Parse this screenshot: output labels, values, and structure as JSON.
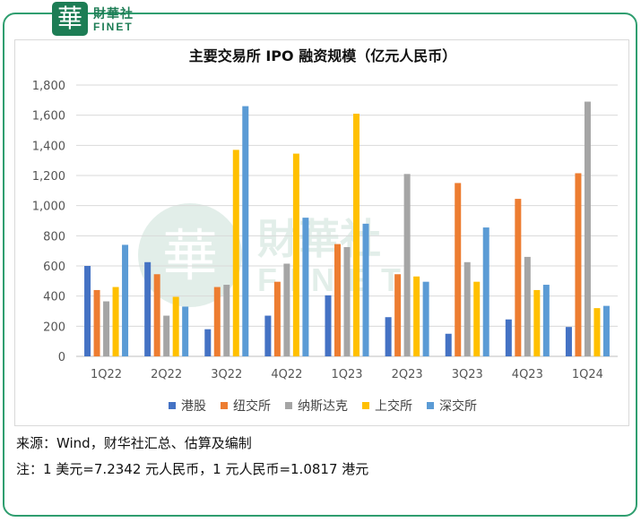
{
  "logo": {
    "mark": "華",
    "cn": "財華社",
    "en": "FINET"
  },
  "watermark": {
    "cn": "財華社",
    "en": "FINET",
    "mark": "華"
  },
  "colors": {
    "frame": "#2f9e6f",
    "港股": "#4472c4",
    "纽交所": "#ed7d31",
    "纳斯达克": "#a5a5a5",
    "上交所": "#ffc000",
    "深交所": "#5b9bd5"
  },
  "chart_data": {
    "type": "bar",
    "title": "主要交易所 IPO 融资规模（亿元人民币）",
    "categories": [
      "1Q22",
      "2Q22",
      "3Q22",
      "4Q22",
      "1Q23",
      "2Q23",
      "3Q23",
      "4Q23",
      "1Q24"
    ],
    "ylim": [
      0,
      1800
    ],
    "yticks": [
      0,
      200,
      400,
      600,
      800,
      1000,
      1200,
      1400,
      1600,
      1800
    ],
    "ytick_labels": [
      "0",
      "200",
      "400",
      "600",
      "800",
      "1,000",
      "1,200",
      "1,400",
      "1,600",
      "1,800"
    ],
    "grid": true,
    "legend_position": "bottom",
    "series": [
      {
        "name": "港股",
        "color": "#4472c4",
        "values": [
          600,
          625,
          180,
          270,
          405,
          260,
          150,
          245,
          195
        ]
      },
      {
        "name": "纽交所",
        "color": "#ed7d31",
        "values": [
          440,
          545,
          460,
          495,
          745,
          545,
          1150,
          1045,
          1215
        ]
      },
      {
        "name": "纳斯达克",
        "color": "#a5a5a5",
        "values": [
          365,
          270,
          475,
          615,
          725,
          1210,
          625,
          660,
          1690
        ]
      },
      {
        "name": "上交所",
        "color": "#ffc000",
        "values": [
          460,
          395,
          1370,
          1345,
          1610,
          530,
          495,
          440,
          320
        ]
      },
      {
        "name": "深交所",
        "color": "#5b9bd5",
        "values": [
          740,
          330,
          1660,
          920,
          880,
          495,
          855,
          475,
          335
        ]
      }
    ]
  },
  "footnotes": {
    "source": "来源：Wind，财华社汇总、估算及编制",
    "note": "注：1 美元=7.2342 元人民币，1 元人民币=1.0817 港元"
  }
}
